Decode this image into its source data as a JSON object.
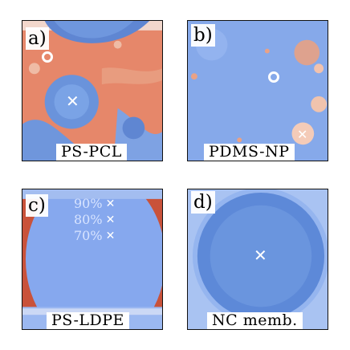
{
  "panels": [
    {
      "letter": "a)",
      "caption": "PS-PCL",
      "base_color": "#e5876a",
      "feature_color": "#6c92d6"
    },
    {
      "letter": "b)",
      "caption": "PDMS-NP",
      "base_color": "#7da3e6",
      "feature_color": "#e39a80"
    },
    {
      "letter": "c)",
      "caption": "PS-LDPE",
      "base_color": "#8aaaf0",
      "feature_color": "#c9523a",
      "percentages": [
        "90%",
        "80%",
        "70%"
      ]
    },
    {
      "letter": "d)",
      "caption": "NC memb.",
      "base_color": "#a8c3f2",
      "feature_color": "#5d89d8"
    }
  ],
  "icons": {
    "center_mark": "cross-icon",
    "ring_mark": "ring-icon"
  }
}
